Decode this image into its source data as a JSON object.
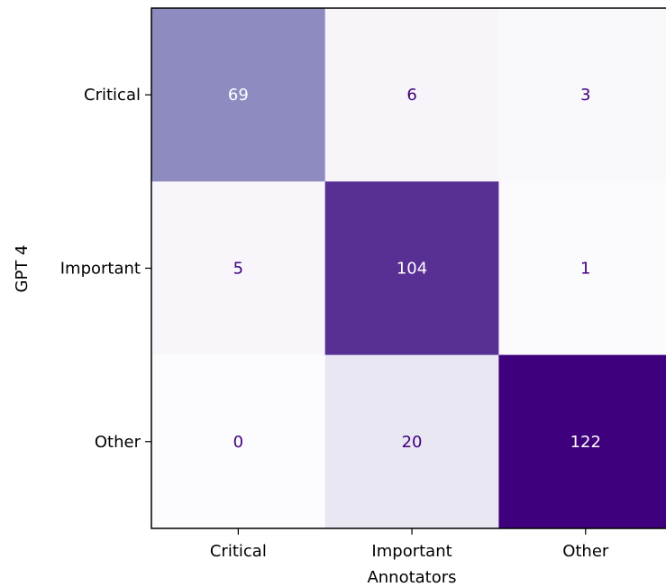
{
  "chart_data": {
    "type": "heatmap",
    "xlabel": "Annotators",
    "ylabel": "GPT 4",
    "x_categories": [
      "Critical",
      "Important",
      "Other"
    ],
    "y_categories": [
      "Critical",
      "Important",
      "Other"
    ],
    "values": [
      [
        69,
        6,
        3
      ],
      [
        5,
        104,
        1
      ],
      [
        0,
        20,
        122
      ]
    ],
    "colormap": "Purples",
    "value_range": [
      0,
      122
    ],
    "colors": {
      "low": "#fcfbfd",
      "high": "#3f007d",
      "text_dark": "#3f007d",
      "text_light": "#ffffff"
    }
  }
}
